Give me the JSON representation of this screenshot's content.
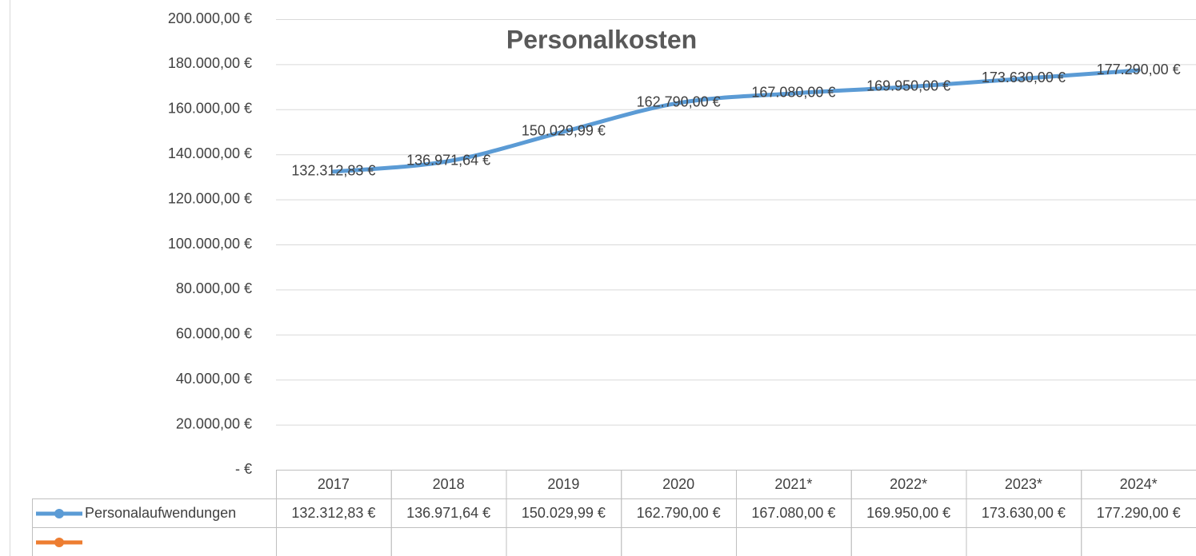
{
  "chart_data": {
    "type": "line",
    "title": "Personalkosten",
    "categories": [
      "2017",
      "2018",
      "2019",
      "2020",
      "2021*",
      "2022*",
      "2023*",
      "2024*"
    ],
    "series": [
      {
        "name": "Personalaufwendungen",
        "color": "#5b9bd5",
        "values": [
          132312.83,
          136971.64,
          150029.99,
          162790.0,
          167080.0,
          169950.0,
          173630.0,
          177290.0
        ],
        "value_labels": [
          "132.312,83 €",
          "136.971,64 €",
          "150.029,99 €",
          "162.790,00 €",
          "167.080,00 €",
          "169.950,00 €",
          "173.630,00 €",
          "177.290,00 €"
        ]
      },
      {
        "color": "#ed7d31",
        "values": [
          null,
          null,
          null,
          null,
          null,
          null,
          null,
          null
        ]
      }
    ],
    "ylim": [
      0,
      200000
    ],
    "yticks": [
      {
        "value": 0,
        "label": "-  €"
      },
      {
        "value": 20000,
        "label": "20.000,00 €"
      },
      {
        "value": 40000,
        "label": "40.000,00 €"
      },
      {
        "value": 60000,
        "label": "60.000,00 €"
      },
      {
        "value": 80000,
        "label": "80.000,00 €"
      },
      {
        "value": 100000,
        "label": "100.000,00 €"
      },
      {
        "value": 120000,
        "label": "120.000,00 €"
      },
      {
        "value": 140000,
        "label": "140.000,00 €"
      },
      {
        "value": 160000,
        "label": "160.000,00 €"
      },
      {
        "value": 180000,
        "label": "180.000,00 €"
      },
      {
        "value": 200000,
        "label": "200.000,00 €"
      }
    ],
    "grid": true,
    "data_table": true
  }
}
